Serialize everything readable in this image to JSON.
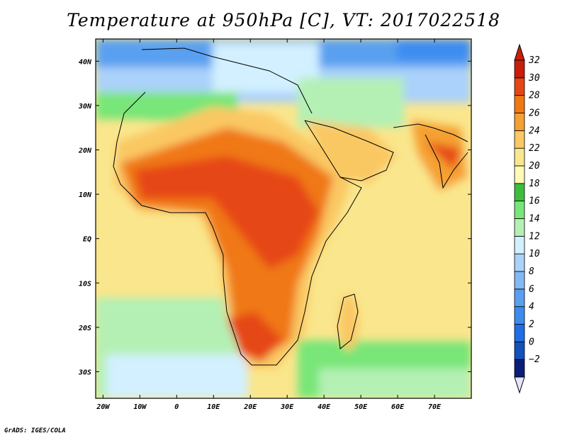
{
  "title": "Temperature at 950hPa [C], VT: 2017022518",
  "credit": "GrADS: IGES/COLA",
  "map": {
    "lon_range": [
      -22,
      80
    ],
    "lat_range": [
      -36,
      45
    ],
    "x_ticks": [
      {
        "value": -20,
        "label": "20W"
      },
      {
        "value": -10,
        "label": "10W"
      },
      {
        "value": 0,
        "label": "0"
      },
      {
        "value": 10,
        "label": "10E"
      },
      {
        "value": 20,
        "label": "20E"
      },
      {
        "value": 30,
        "label": "30E"
      },
      {
        "value": 40,
        "label": "40E"
      },
      {
        "value": 50,
        "label": "50E"
      },
      {
        "value": 60,
        "label": "60E"
      },
      {
        "value": 70,
        "label": "70E"
      }
    ],
    "y_ticks": [
      {
        "value": 40,
        "label": "40N"
      },
      {
        "value": 30,
        "label": "30N"
      },
      {
        "value": 20,
        "label": "20N"
      },
      {
        "value": 10,
        "label": "10N"
      },
      {
        "value": 0,
        "label": "EQ"
      },
      {
        "value": -10,
        "label": "10S"
      },
      {
        "value": -20,
        "label": "20S"
      },
      {
        "value": -30,
        "label": "30S"
      }
    ]
  },
  "colorbar": {
    "levels": [
      -2,
      0,
      2,
      4,
      6,
      8,
      10,
      12,
      14,
      16,
      18,
      20,
      22,
      24,
      26,
      28,
      30,
      32
    ],
    "labels": [
      "32",
      "30",
      "28",
      "26",
      "24",
      "22",
      "20",
      "18",
      "16",
      "14",
      "12",
      "10",
      "8",
      "6",
      "4",
      "2",
      "0",
      "−2"
    ],
    "colors": [
      "#0a1e78",
      "#1450be",
      "#1e6ee6",
      "#3c8cf0",
      "#5aa0f0",
      "#82b9f5",
      "#aad2fa",
      "#d2f0ff",
      "#b4f0b4",
      "#78e678",
      "#3cbe3c",
      "#fffab4",
      "#fae68c",
      "#fac864",
      "#f5a032",
      "#f07814",
      "#e64614",
      "#c81e0a"
    ],
    "under_color": "#e6e6ff",
    "over_color": "#c81e0a"
  }
}
